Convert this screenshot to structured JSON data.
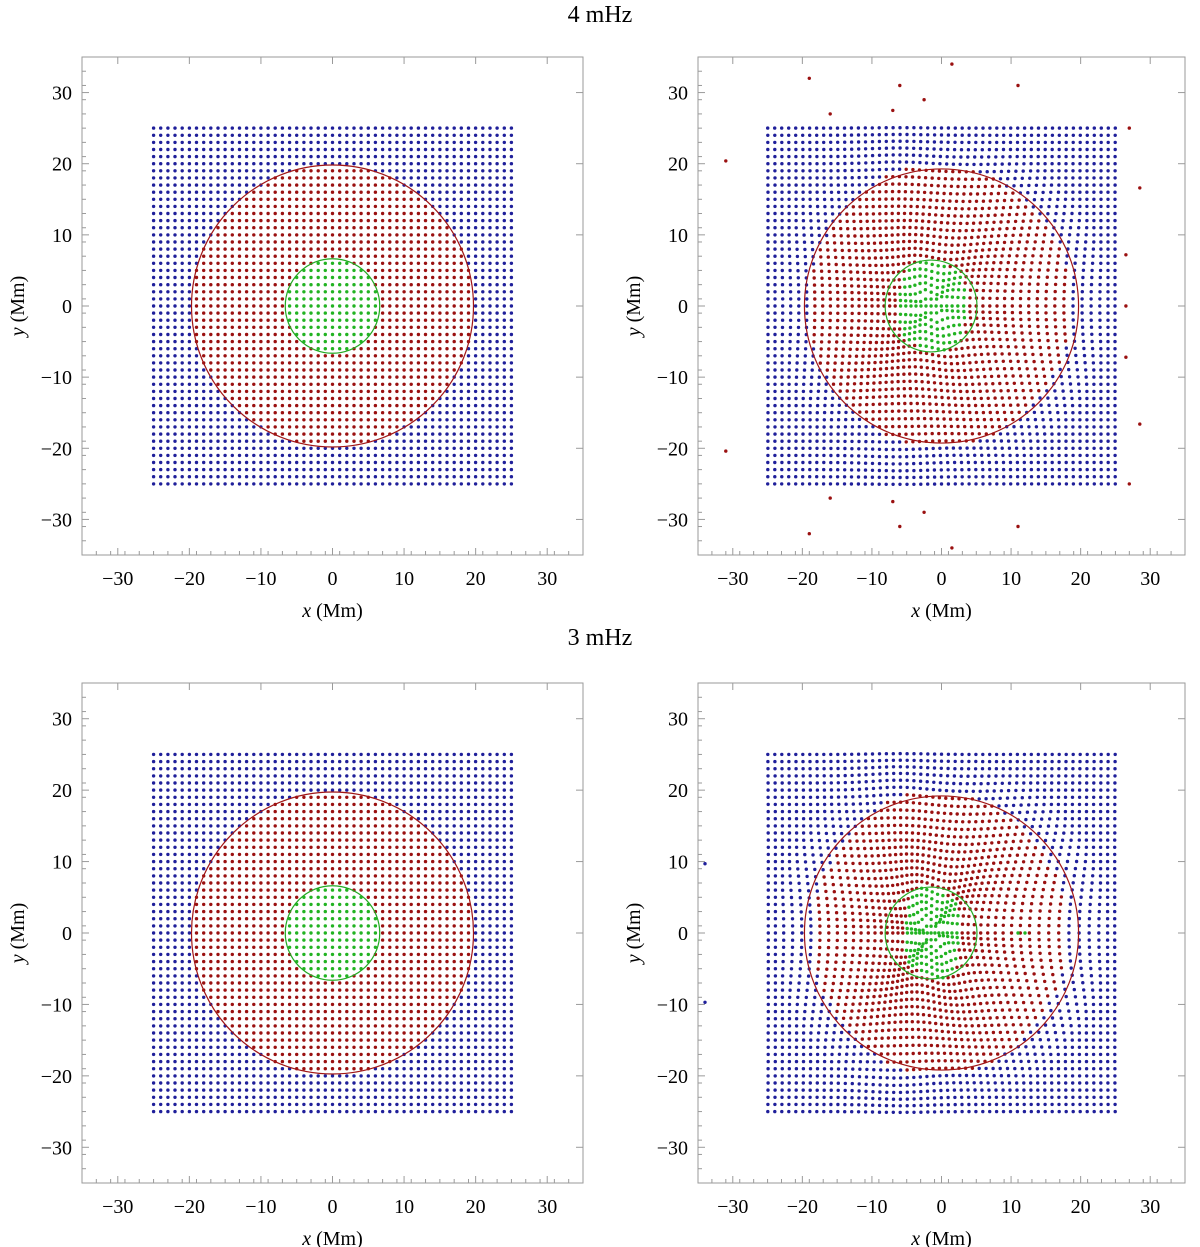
{
  "titles": {
    "top": "4 mHz",
    "bottom": "3 mHz"
  },
  "colors": {
    "outer": "#1f1f9a",
    "inner": "#9a1010",
    "core": "#22b322",
    "frame": "#9a9a9a",
    "circle_outer": "#a01515",
    "circle_core": "#22aa22"
  },
  "chart_data": [
    {
      "type": "scatter",
      "panel": "top-left",
      "title": "4 mHz",
      "variant": "initial",
      "xlabel_var": "x",
      "xlabel_unit": "(Mm)",
      "ylabel_var": "y",
      "ylabel_unit": "(Mm)",
      "xlim": [
        -35,
        35
      ],
      "ylim": [
        -35,
        35
      ],
      "xticks": [
        -30,
        -20,
        -10,
        0,
        10,
        20,
        30
      ],
      "yticks": [
        -30,
        -20,
        -10,
        0,
        10,
        20,
        30
      ],
      "tick_labels": [
        "−30",
        "−20",
        "−10",
        "0",
        "10",
        "20",
        "30"
      ],
      "grid": {
        "min": -25,
        "max": 25,
        "step": 1
      },
      "circles": [
        {
          "name": "boundary",
          "r": 19.7
        },
        {
          "name": "core",
          "r": 6.6
        }
      ],
      "series": [
        {
          "name": "outer",
          "color": "#1f1f9a"
        },
        {
          "name": "inner",
          "color": "#9a1010"
        },
        {
          "name": "core",
          "color": "#22b322"
        }
      ]
    },
    {
      "type": "scatter",
      "panel": "top-right",
      "title": "4 mHz",
      "variant": "deformed",
      "xlabel_var": "x",
      "xlabel_unit": "(Mm)",
      "ylabel_var": "y",
      "ylabel_unit": "(Mm)",
      "xlim": [
        -35,
        35
      ],
      "ylim": [
        -35,
        35
      ],
      "xticks": [
        -30,
        -20,
        -10,
        0,
        10,
        20,
        30
      ],
      "yticks": [
        -30,
        -20,
        -10,
        0,
        10,
        20,
        30
      ],
      "tick_labels": [
        "−30",
        "−20",
        "−10",
        "0",
        "10",
        "20",
        "30"
      ],
      "grid": {
        "min": -25,
        "max": 25,
        "step": 1
      },
      "circles": [
        {
          "name": "boundary",
          "r": 19.7,
          "cx": 0
        },
        {
          "name": "core",
          "r": 6.6,
          "cx": -1.5
        }
      ],
      "strength": 4.5,
      "outliers": [
        [
          -31,
          20.4
        ],
        [
          -31,
          -20.4
        ],
        [
          -19,
          32
        ],
        [
          -19,
          -32
        ],
        [
          -6,
          31
        ],
        [
          -6,
          -31
        ],
        [
          -2.5,
          29
        ],
        [
          -2.5,
          -29
        ],
        [
          1.5,
          34
        ],
        [
          1.5,
          -34
        ],
        [
          11,
          31
        ],
        [
          11,
          -31
        ],
        [
          27,
          25
        ],
        [
          27,
          -25
        ],
        [
          28.5,
          16.6
        ],
        [
          28.5,
          -16.6
        ],
        [
          26.5,
          7.2
        ],
        [
          26.5,
          -7.2
        ],
        [
          26.5,
          0
        ],
        [
          -16,
          27
        ],
        [
          -16,
          -27
        ],
        [
          -7,
          27.5
        ],
        [
          -7,
          -27.5
        ]
      ]
    },
    {
      "type": "scatter",
      "panel": "bottom-left",
      "title": "3 mHz",
      "variant": "initial",
      "xlabel_var": "x",
      "xlabel_unit": "(Mm)",
      "ylabel_var": "y",
      "ylabel_unit": "(Mm)",
      "xlim": [
        -35,
        35
      ],
      "ylim": [
        -35,
        35
      ],
      "xticks": [
        -30,
        -20,
        -10,
        0,
        10,
        20,
        30
      ],
      "yticks": [
        -30,
        -20,
        -10,
        0,
        10,
        20,
        30
      ],
      "tick_labels": [
        "−30",
        "−20",
        "−10",
        "0",
        "10",
        "20",
        "30"
      ],
      "grid": {
        "min": -25,
        "max": 25,
        "step": 1
      },
      "circles": [
        {
          "name": "boundary",
          "r": 19.7
        },
        {
          "name": "core",
          "r": 6.6
        }
      ],
      "series": [
        {
          "name": "outer",
          "color": "#1f1f9a"
        },
        {
          "name": "inner",
          "color": "#9a1010"
        },
        {
          "name": "core",
          "color": "#22b322"
        }
      ]
    },
    {
      "type": "scatter",
      "panel": "bottom-right",
      "title": "3 mHz",
      "variant": "deformed",
      "xlabel_var": "x",
      "xlabel_unit": "(Mm)",
      "ylabel_var": "y",
      "ylabel_unit": "(Mm)",
      "xlim": [
        -35,
        35
      ],
      "ylim": [
        -35,
        35
      ],
      "xticks": [
        -30,
        -20,
        -10,
        0,
        10,
        20,
        30
      ],
      "yticks": [
        -30,
        -20,
        -10,
        0,
        10,
        20,
        30
      ],
      "tick_labels": [
        "−30",
        "−20",
        "−10",
        "0",
        "10",
        "20",
        "30"
      ],
      "grid": {
        "min": -25,
        "max": 25,
        "step": 1
      },
      "circles": [
        {
          "name": "boundary",
          "r": 19.7,
          "cx": 0
        },
        {
          "name": "core",
          "r": 6.6,
          "cx": -1.5
        }
      ],
      "strength": 7.5,
      "outliers": [
        [
          -34,
          9.7
        ],
        [
          -34,
          -9.7
        ],
        [
          11,
          0
        ],
        [
          12,
          0
        ]
      ]
    }
  ]
}
